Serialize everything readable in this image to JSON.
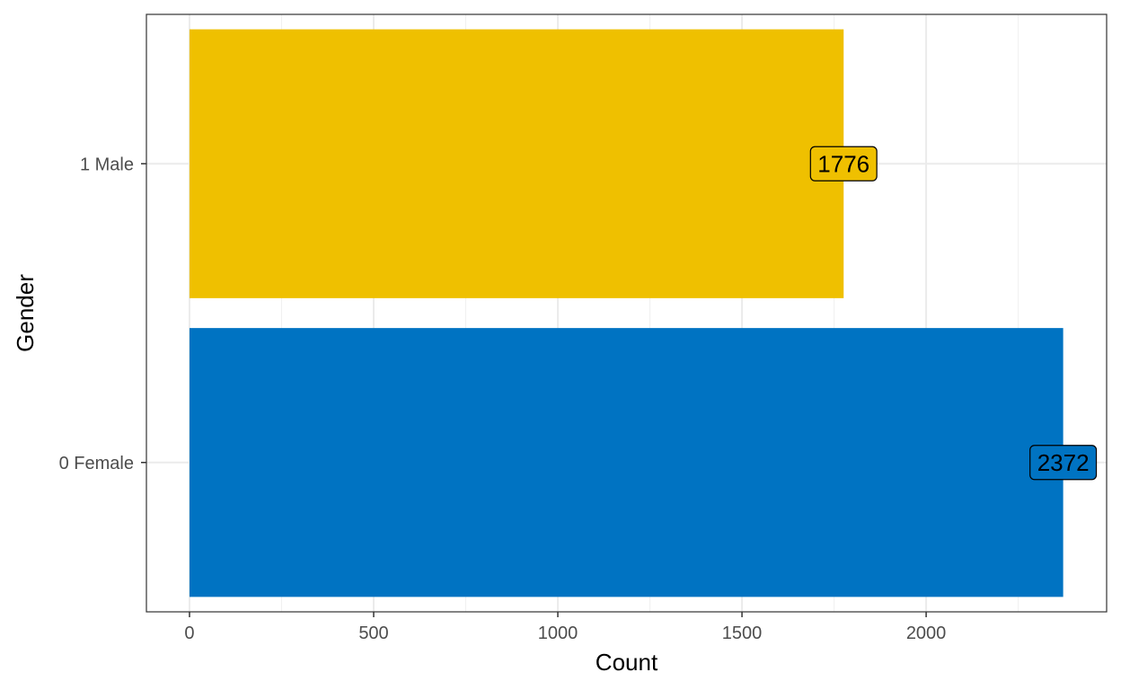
{
  "chart_data": {
    "type": "bar",
    "orientation": "horizontal",
    "categories": [
      "0 Female",
      "1 Male"
    ],
    "values": [
      2372,
      1776
    ],
    "colors": [
      "#0073C2",
      "#EFC000"
    ],
    "data_labels": [
      "2372",
      "1776"
    ],
    "xlabel": "Count",
    "ylabel": "Gender",
    "xlim": [
      -117,
      2490
    ],
    "x_ticks": [
      0,
      500,
      1000,
      1500,
      2000
    ],
    "x_tick_labels": [
      "0",
      "500",
      "1000",
      "1500",
      "2000"
    ],
    "grid": true,
    "legend": "none"
  }
}
